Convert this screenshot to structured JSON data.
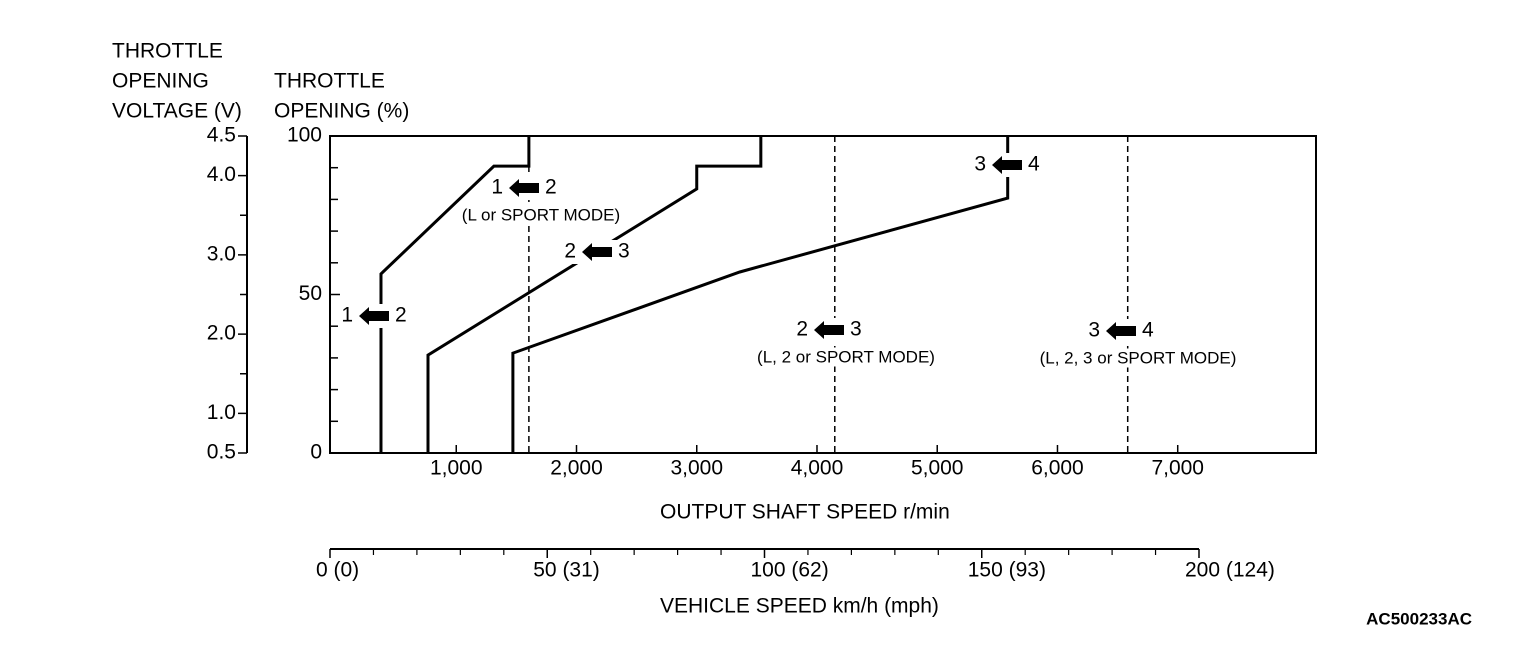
{
  "chart_data": {
    "type": "line",
    "y2_title_lines": [
      "THROTTLE",
      "OPENING",
      "VOLTAGE (V)"
    ],
    "y_title_lines": [
      "THROTTLE",
      "OPENING (%)"
    ],
    "x_title": "OUTPUT SHAFT SPEED r/min",
    "x2_title": "VEHICLE SPEED km/h (mph)",
    "figure_code": "AC500233AC",
    "color": "#000000",
    "xlim": [
      -50,
      8150
    ],
    "xticks": [
      {
        "value": 1000,
        "label": "1,000"
      },
      {
        "value": 2000,
        "label": "2,000"
      },
      {
        "value": 3000,
        "label": "3,000"
      },
      {
        "value": 4000,
        "label": "4,000"
      },
      {
        "value": 5000,
        "label": "5,000"
      },
      {
        "value": 6000,
        "label": "6,000"
      },
      {
        "value": 7000,
        "label": "7,000"
      }
    ],
    "ylim": [
      0,
      100
    ],
    "yticks": [
      0,
      50,
      100
    ],
    "yminor_ticks": [
      10,
      20,
      30,
      40,
      60,
      70,
      80,
      90
    ],
    "y2lim": [
      0.5,
      4.5
    ],
    "y2ticks": [
      0.5,
      {
        "value": 1.0,
        "label": "1.0"
      },
      {
        "value": 2.0,
        "label": "2.0"
      },
      {
        "value": 3.0,
        "label": "3.0"
      },
      {
        "value": 4.0,
        "label": "4.0"
      },
      4.5
    ],
    "y2minor_ticks": [
      1.5,
      2.5,
      3.5
    ],
    "x2lim": [
      0,
      200
    ],
    "x2ticks": [
      {
        "value": 0,
        "label": "0 (0)"
      },
      {
        "value": 50,
        "label": "50 (31)"
      },
      {
        "value": 100,
        "label": "100 (62)"
      },
      {
        "value": 150,
        "label": "150 (93)"
      },
      {
        "value": 200,
        "label": "200 (124)"
      }
    ],
    "x2minor_ticks": [
      10,
      20,
      30,
      40,
      60,
      70,
      80,
      90,
      110,
      120,
      130,
      140,
      160,
      170,
      180,
      190
    ],
    "series": [
      {
        "x": [
          374,
          374,
          1313,
          1604,
          1604
        ],
        "values": [
          0,
          56.5,
          90.5,
          90.5,
          100
        ]
      },
      {
        "x": [
          765,
          765,
          3000,
          3000,
          3533,
          3533
        ],
        "values": [
          0,
          30.9,
          83.3,
          90.5,
          90.5,
          100
        ]
      },
      {
        "x": [
          1471,
          1471,
          3358,
          5586,
          5586
        ],
        "values": [
          0,
          31.5,
          57.1,
          80.4,
          100
        ]
      }
    ],
    "reference_lines": [
      1604,
      4148,
      6584
    ],
    "annotations": [
      {
        "left": "1",
        "right": "2"
      },
      {
        "left": "1",
        "right": "2",
        "note": "(L or SPORT MODE)"
      },
      {
        "left": "2",
        "right": "3"
      },
      {
        "left": "3",
        "right": "4"
      },
      {
        "left": "2",
        "right": "3",
        "note": "(L, 2 or SPORT MODE)"
      },
      {
        "left": "3",
        "right": "4",
        "note": "(L, 2, 3 or SPORT MODE)"
      }
    ]
  }
}
